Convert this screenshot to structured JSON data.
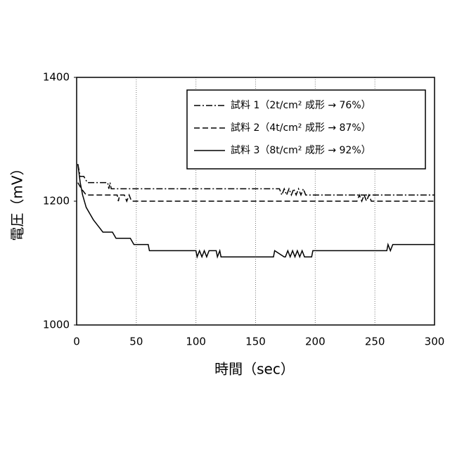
{
  "chart_data": {
    "type": "line",
    "xlabel": "時間（sec）",
    "ylabel": "電圧（mV）",
    "xlim": [
      0,
      300
    ],
    "xticks": [
      0,
      50,
      100,
      150,
      200,
      250,
      300
    ],
    "ylim": [
      1000,
      1400
    ],
    "yticks": [
      1000,
      1200,
      1400
    ],
    "grid": "x",
    "legend": "upper right",
    "series": [
      {
        "name": "試料 1（2t/cm² 成形 → 76%）",
        "color": "#000000",
        "dash": "dashdot",
        "x": [
          1,
          3,
          6,
          9,
          26,
          27,
          28,
          29,
          30,
          170,
          172,
          174,
          176,
          178,
          180,
          182,
          184,
          186,
          188,
          190,
          192,
          300
        ],
        "values": [
          1260,
          1240,
          1240,
          1230,
          1230,
          1220,
          1230,
          1220,
          1220,
          1220,
          1210,
          1220,
          1210,
          1220,
          1210,
          1220,
          1210,
          1220,
          1210,
          1220,
          1210,
          1210
        ]
      },
      {
        "name": "試料 2（4t/cm² 成形 → 87%）",
        "color": "#000000",
        "dash": "dashed",
        "x": [
          1,
          4,
          8,
          34,
          35,
          36,
          40,
          42,
          44,
          46,
          48,
          235,
          237,
          239,
          241,
          243,
          245,
          247,
          249,
          300
        ],
        "values": [
          1230,
          1220,
          1210,
          1210,
          1200,
          1210,
          1210,
          1200,
          1210,
          1200,
          1200,
          1200,
          1210,
          1200,
          1210,
          1200,
          1210,
          1200,
          1200,
          1200
        ]
      },
      {
        "name": "試料 3（8t/cm² 成形 → 92%）",
        "color": "#000000",
        "dash": "solid",
        "x": [
          1,
          3,
          5,
          8,
          11,
          14,
          18,
          22,
          30,
          33,
          45,
          48,
          60,
          61,
          100,
          101,
          103,
          105,
          107,
          109,
          111,
          113,
          117,
          118,
          120,
          121,
          165,
          166,
          174,
          175,
          177,
          179,
          181,
          183,
          185,
          187,
          189,
          191,
          197,
          198,
          200,
          260,
          261,
          263,
          265,
          300
        ],
        "values": [
          1260,
          1230,
          1210,
          1190,
          1180,
          1170,
          1160,
          1150,
          1150,
          1140,
          1140,
          1130,
          1130,
          1120,
          1120,
          1110,
          1120,
          1110,
          1120,
          1110,
          1120,
          1120,
          1120,
          1110,
          1120,
          1110,
          1110,
          1120,
          1110,
          1110,
          1120,
          1110,
          1120,
          1110,
          1120,
          1110,
          1120,
          1110,
          1110,
          1120,
          1120,
          1120,
          1130,
          1120,
          1130,
          1130
        ]
      }
    ]
  }
}
